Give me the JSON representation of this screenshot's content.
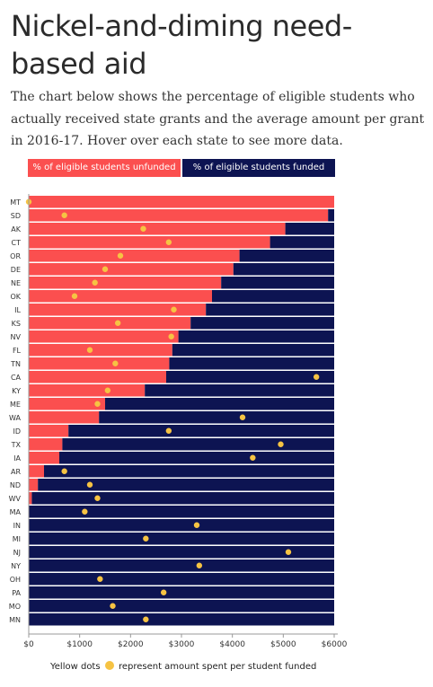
{
  "title": "Nickel-and-diming need-based aid",
  "subtitle": "The chart below shows the percentage of eligible students who actually received state grants and the average amount per grant in 2016-17. Hover over each state to see more data.",
  "legend": {
    "unfunded_label": "% of eligible students unfunded",
    "funded_label": "% of eligible students funded"
  },
  "footnote": {
    "before": "Yellow dots",
    "after": "represent amount spent per student funded"
  },
  "colors": {
    "unfunded": "#fb4f4f",
    "funded": "#0d1452",
    "dot": "#f6c343"
  },
  "chart_data": {
    "type": "bar",
    "orientation": "horizontal",
    "stacked": true,
    "categories": [
      "MT",
      "SD",
      "AK",
      "CT",
      "OR",
      "DE",
      "NE",
      "OK",
      "IL",
      "KS",
      "NV",
      "FL",
      "TN",
      "CA",
      "KY",
      "ME",
      "WA",
      "ID",
      "TX",
      "IA",
      "AR",
      "ND",
      "WV",
      "MA",
      "IN",
      "MI",
      "NJ",
      "NY",
      "OH",
      "PA",
      "MO",
      "MN"
    ],
    "series": [
      {
        "name": "% of eligible students unfunded",
        "values": [
          100,
          98,
          84,
          79,
          69,
          67,
          63,
          60,
          58,
          53,
          49,
          47,
          46,
          45,
          38,
          25,
          23,
          13,
          11,
          10,
          5,
          3,
          1,
          0,
          0,
          0,
          0,
          0,
          0,
          0,
          0,
          0
        ]
      },
      {
        "name": "% of eligible students funded",
        "values": [
          0,
          2,
          16,
          21,
          31,
          33,
          37,
          40,
          42,
          47,
          51,
          53,
          54,
          55,
          62,
          75,
          77,
          87,
          89,
          90,
          95,
          97,
          99,
          100,
          100,
          100,
          100,
          100,
          100,
          100,
          100,
          100
        ]
      }
    ],
    "dots": [
      0,
      700,
      2250,
      2750,
      1800,
      1500,
      1300,
      900,
      2850,
      1750,
      2800,
      1200,
      1700,
      5650,
      1550,
      1350,
      4200,
      2750,
      4950,
      4400,
      700,
      1200,
      1350,
      1100,
      3300,
      2300,
      5100,
      3350,
      1400,
      2650,
      1650,
      2300
    ],
    "x_axis": {
      "ticks": [
        0,
        1000,
        2000,
        3000,
        4000,
        5000,
        6000
      ],
      "tick_labels": [
        "$0",
        "$1000",
        "$2000",
        "$3000",
        "$4000",
        "$5000",
        "$6000"
      ],
      "range": [
        0,
        6000
      ]
    },
    "grid": false
  }
}
